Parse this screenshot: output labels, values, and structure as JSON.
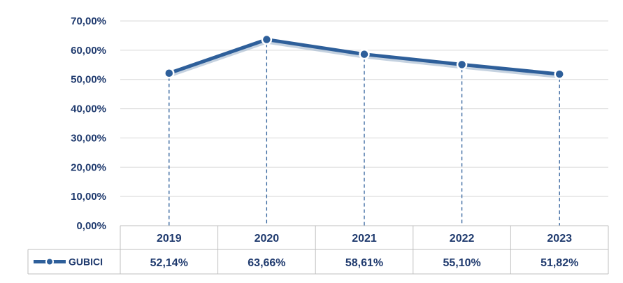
{
  "chart_data": {
    "type": "line",
    "categories": [
      "2019",
      "2020",
      "2021",
      "2022",
      "2023"
    ],
    "series": [
      {
        "name": "GUBICI",
        "values": [
          52.14,
          63.66,
          58.61,
          55.1,
          51.82
        ],
        "value_labels": [
          "52,14%",
          "63,66%",
          "58,61%",
          "55,10%",
          "51,82%"
        ],
        "color": "#2e5f9a",
        "marker": "circle"
      }
    ],
    "yticks": [
      "0,00%",
      "10,00%",
      "20,00%",
      "30,00%",
      "40,00%",
      "50,00%",
      "60,00%",
      "70,00%"
    ],
    "ylim": [
      0,
      70
    ],
    "grid": true,
    "drop_lines": true,
    "data_table": true,
    "colors": {
      "text": "#1f3a6e",
      "grid": "#d9d9d9",
      "line": "#2e5f9a",
      "line_shadow": "#9fb4cc",
      "table_border": "#bfbfbf"
    }
  }
}
